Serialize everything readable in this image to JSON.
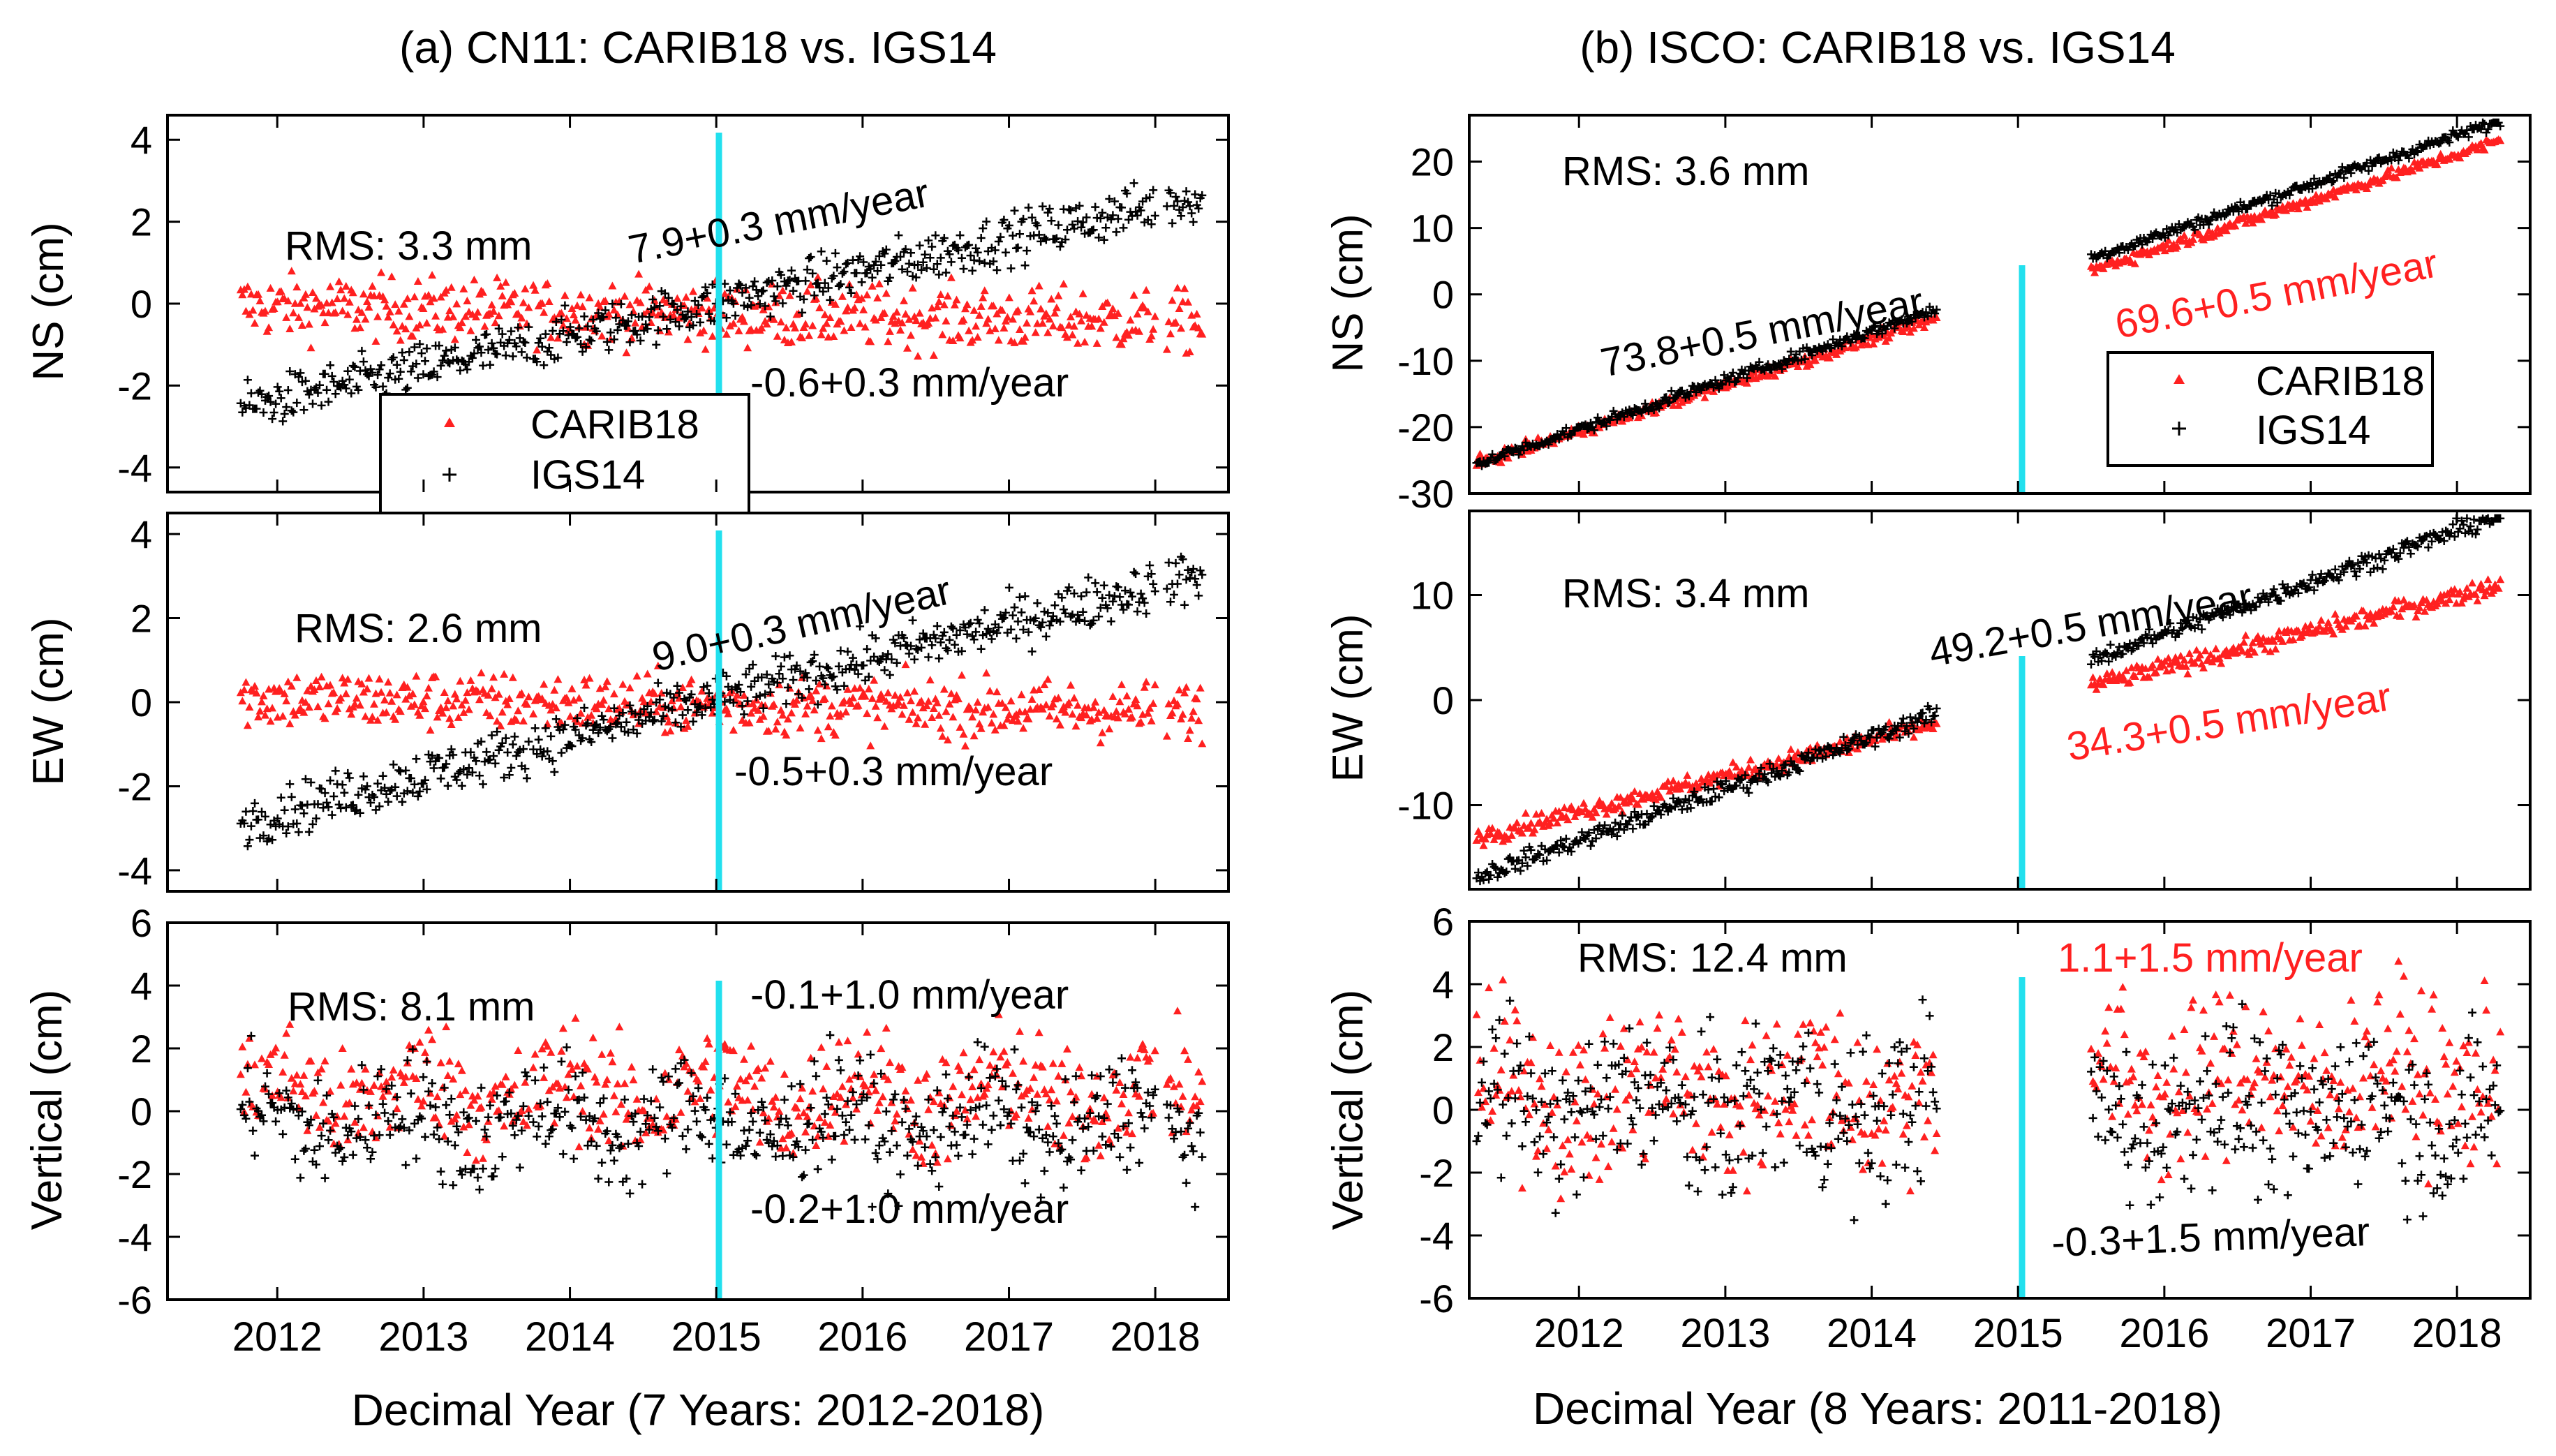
{
  "figure": {
    "colors": {
      "carib": "#ff2020",
      "igs": "#000000",
      "marker": "#22e0ee",
      "frame": "#000000"
    },
    "legend": {
      "entries": [
        "CARIB18",
        "IGS14"
      ]
    }
  },
  "chart_data": [
    {
      "id": "a",
      "type": "scatter",
      "title": "(a) CN11: CARIB18 vs. IGS14",
      "xlabel": "Decimal Year (7 Years: 2012-2018)",
      "xlim": [
        2011.25,
        2018.5
      ],
      "xticks": [
        2012,
        2013,
        2014,
        2015,
        2016,
        2017,
        2018
      ],
      "reference_year": 2015,
      "data_spans": [
        [
          2011.75,
          2013.72
        ],
        [
          2013.75,
          2018.0
        ],
        [
          2018.08,
          2018.33
        ]
      ],
      "panels": [
        {
          "key": "ns",
          "ylabel": "NS (cm)",
          "ylim": [
            -4.6,
            4.6
          ],
          "yticks": [
            -4,
            -2,
            0,
            2,
            4
          ],
          "rms": "RMS: 3.3 mm",
          "series": [
            {
              "name": "CARIB18",
              "start": -0.05,
              "slope": -0.06,
              "noise": 0.38,
              "rate_label": "-0.6+0.3 mm/year"
            },
            {
              "name": "IGS14",
              "start": -2.55,
              "slope": 0.79,
              "noise": 0.3,
              "rate_label": "7.9+0.3 mm/year"
            }
          ],
          "legend": true
        },
        {
          "key": "ew",
          "ylabel": "EW (cm)",
          "ylim": [
            -4.5,
            4.5
          ],
          "yticks": [
            -4,
            -2,
            0,
            2,
            4
          ],
          "rms": "RMS: 2.6 mm",
          "series": [
            {
              "name": "CARIB18",
              "start": 0.1,
              "slope": -0.05,
              "noise": 0.35,
              "rate_label": "-0.5+0.3 mm/year"
            },
            {
              "name": "IGS14",
              "start": -2.85,
              "slope": 0.9,
              "noise": 0.3,
              "rate_label": "9.0+0.3 mm/year"
            }
          ]
        },
        {
          "key": "vertical",
          "ylabel": "Vertical (cm)",
          "ylim": [
            -6,
            6
          ],
          "yticks": [
            -6,
            -4,
            -2,
            0,
            2,
            4,
            6
          ],
          "rms": "RMS: 8.1 mm",
          "series": [
            {
              "name": "CARIB18",
              "start": 0.6,
              "slope": -0.01,
              "noise": 0.9,
              "rate_label": "-0.1+1.0 mm/year"
            },
            {
              "name": "IGS14",
              "start": -0.3,
              "slope": -0.02,
              "noise": 0.9,
              "rate_label": "-0.2+1.0 mm/year"
            }
          ]
        }
      ]
    },
    {
      "id": "b",
      "type": "scatter",
      "title": "(b) ISCO: CARIB18 vs. IGS14",
      "xlabel": "Decimal Year (8 Years: 2011-2018)",
      "xlim": [
        2011.25,
        2018.5
      ],
      "xticks": [
        2012,
        2013,
        2014,
        2015,
        2016,
        2017,
        2018
      ],
      "reference_year": 2015,
      "data_spans": [
        [
          2011.3,
          2014.45
        ],
        [
          2015.5,
          2018.3
        ]
      ],
      "panels": [
        {
          "key": "ns",
          "ylabel": "NS (cm)",
          "ylim": [
            -30,
            27
          ],
          "yticks": [
            -30,
            -20,
            -10,
            0,
            10,
            20
          ],
          "rms": "RMS: 3.6 mm",
          "series": [
            {
              "name": "CARIB18",
              "start": -25.5,
              "slope": 6.96,
              "noise": 0.45,
              "rate_label": "69.6+0.5 mm/year"
            },
            {
              "name": "IGS14",
              "start": -25.5,
              "slope": 7.38,
              "noise": 0.45,
              "rate_label": "73.8+0.5 mm/year"
            }
          ],
          "legend": true
        },
        {
          "key": "ew",
          "ylabel": "EW (cm)",
          "ylim": [
            -18,
            18
          ],
          "yticks": [
            -10,
            0,
            10
          ],
          "rms": "RMS: 3.4 mm",
          "series": [
            {
              "name": "CARIB18",
              "start": -13,
              "slope": 3.43,
              "noise": 0.45,
              "rate_label": "34.3+0.5 mm/year"
            },
            {
              "name": "IGS14",
              "start": -16.8,
              "slope": 4.92,
              "noise": 0.45,
              "rate_label": "49.2+0.5 mm/year"
            }
          ]
        },
        {
          "key": "vertical",
          "ylabel": "Vertical (cm)",
          "ylim": [
            -6,
            6
          ],
          "yticks": [
            -6,
            -4,
            -2,
            0,
            2,
            4,
            6
          ],
          "rms": "RMS: 12.4 mm",
          "series": [
            {
              "name": "CARIB18",
              "start": 0.4,
              "slope": 0.11,
              "noise": 1.3,
              "rate_label": "1.1+1.5 mm/year"
            },
            {
              "name": "IGS14",
              "start": 0.1,
              "slope": -0.03,
              "noise": 1.3,
              "rate_label": "-0.3+1.5 mm/year"
            }
          ]
        }
      ]
    }
  ]
}
